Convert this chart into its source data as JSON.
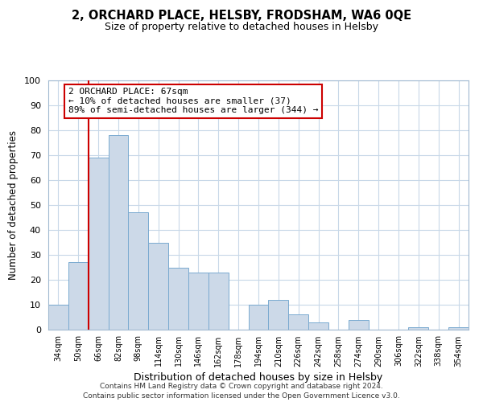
{
  "title": "2, ORCHARD PLACE, HELSBY, FRODSHAM, WA6 0QE",
  "subtitle": "Size of property relative to detached houses in Helsby",
  "xlabel": "Distribution of detached houses by size in Helsby",
  "ylabel": "Number of detached properties",
  "bar_color": "#ccd9e8",
  "bar_edge_color": "#7aaad0",
  "categories": [
    "34sqm",
    "50sqm",
    "66sqm",
    "82sqm",
    "98sqm",
    "114sqm",
    "130sqm",
    "146sqm",
    "162sqm",
    "178sqm",
    "194sqm",
    "210sqm",
    "226sqm",
    "242sqm",
    "258sqm",
    "274sqm",
    "290sqm",
    "306sqm",
    "322sqm",
    "338sqm",
    "354sqm"
  ],
  "values": [
    10,
    27,
    69,
    78,
    47,
    35,
    25,
    23,
    23,
    0,
    10,
    12,
    6,
    3,
    0,
    4,
    0,
    0,
    1,
    0,
    1
  ],
  "ylim": [
    0,
    100
  ],
  "yticks": [
    0,
    10,
    20,
    30,
    40,
    50,
    60,
    70,
    80,
    90,
    100
  ],
  "vline_color": "#cc0000",
  "vline_x_index": 2,
  "annotation_title": "2 ORCHARD PLACE: 67sqm",
  "annotation_line1": "← 10% of detached houses are smaller (37)",
  "annotation_line2": "89% of semi-detached houses are larger (344) →",
  "annotation_box_color": "#ffffff",
  "annotation_box_edge": "#cc0000",
  "footer1": "Contains HM Land Registry data © Crown copyright and database right 2024.",
  "footer2": "Contains public sector information licensed under the Open Government Licence v3.0.",
  "bg_color": "#ffffff",
  "grid_color": "#c8d8e8",
  "spine_color": "#a0b8d0"
}
